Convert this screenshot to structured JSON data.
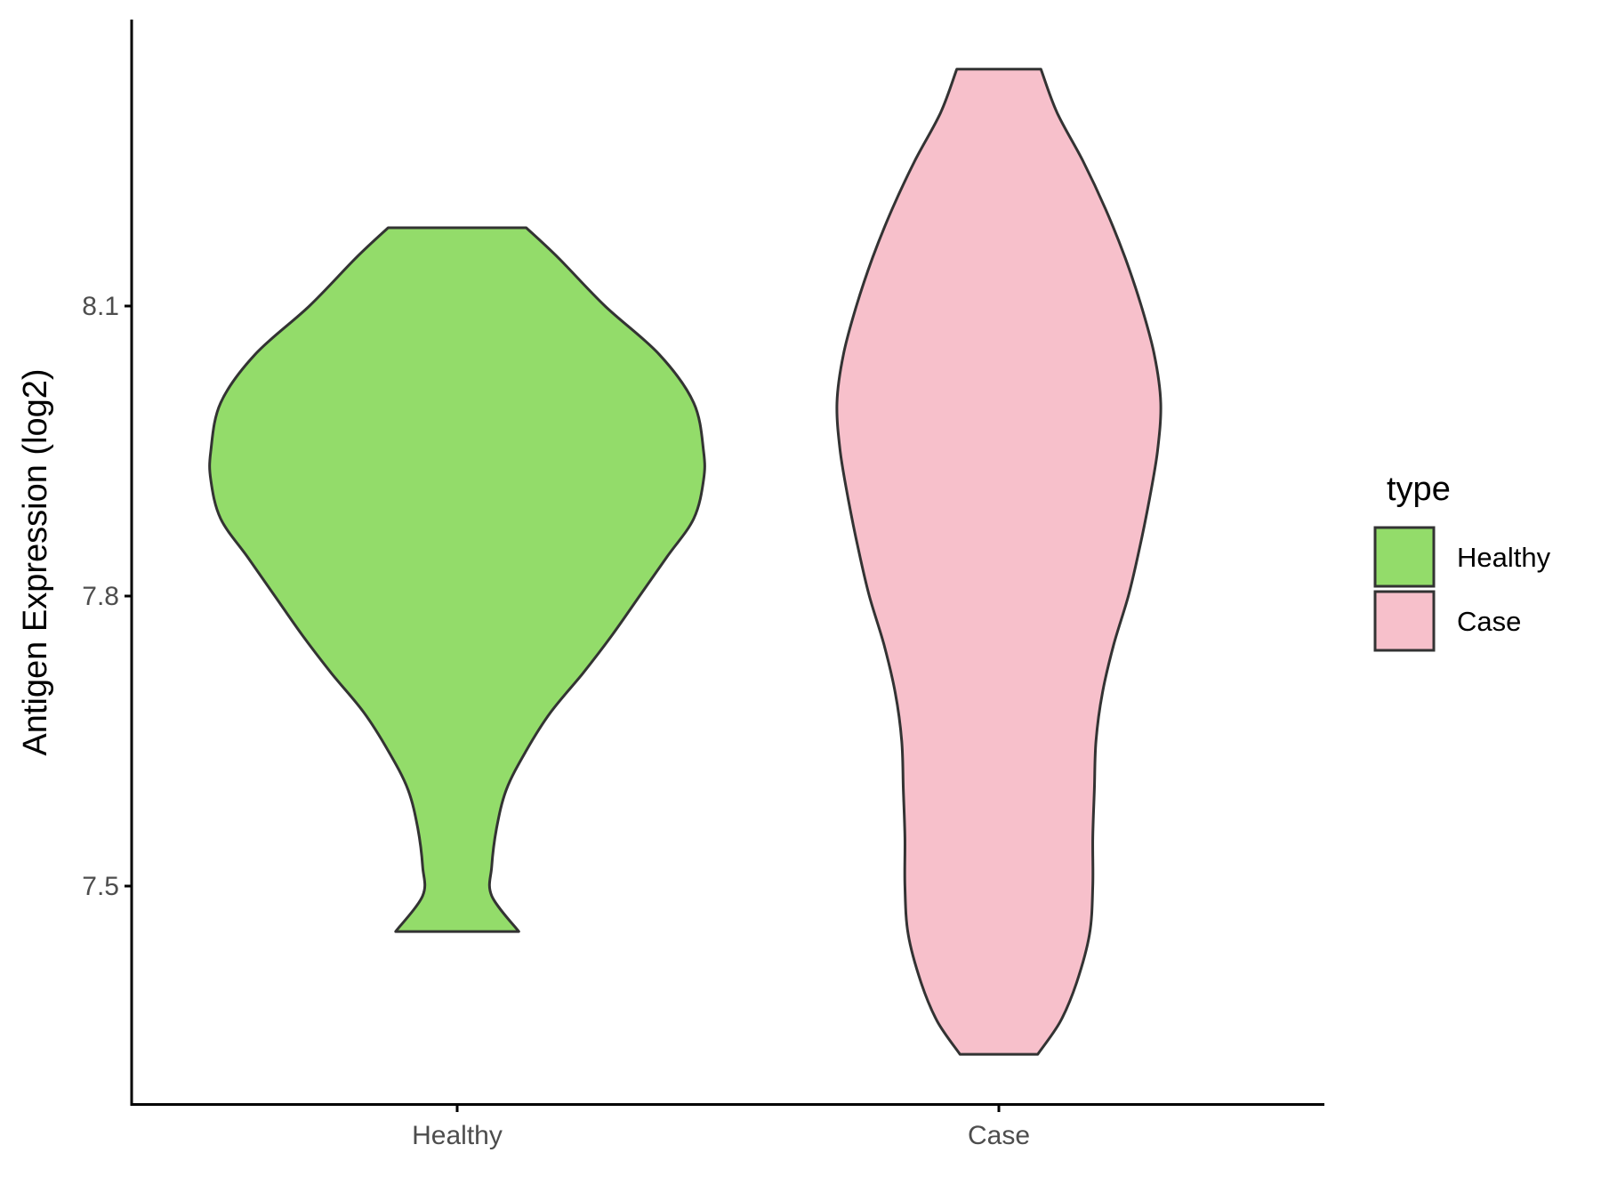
{
  "chart_data": {
    "type": "violin",
    "title": "",
    "xlabel": "",
    "ylabel": "Antigen Expression (log2)",
    "categories": [
      "Healthy",
      "Case"
    ],
    "yticks": [
      7.5,
      7.8,
      8.1
    ],
    "ylim": [
      7.28,
      8.39
    ],
    "grid": false,
    "legend": {
      "title": "type",
      "position": "right",
      "entries": [
        {
          "label": "Healthy",
          "color": "#93DC6A"
        },
        {
          "label": "Case",
          "color": "#F7C0CB"
        }
      ]
    },
    "series": [
      {
        "name": "Healthy",
        "color": "#93DC6A",
        "min": 7.453,
        "max": 8.181,
        "profile": [
          [
            8.181,
            0.28
          ],
          [
            8.15,
            0.41
          ],
          [
            8.1,
            0.6
          ],
          [
            8.05,
            0.82
          ],
          [
            8.0,
            0.96
          ],
          [
            7.95,
            1.0
          ],
          [
            7.92,
            1.0
          ],
          [
            7.88,
            0.96
          ],
          [
            7.84,
            0.85
          ],
          [
            7.8,
            0.74
          ],
          [
            7.76,
            0.63
          ],
          [
            7.72,
            0.51
          ],
          [
            7.68,
            0.38
          ],
          [
            7.64,
            0.28
          ],
          [
            7.6,
            0.2
          ],
          [
            7.56,
            0.16
          ],
          [
            7.52,
            0.14
          ],
          [
            7.49,
            0.14
          ],
          [
            7.453,
            0.25
          ]
        ]
      },
      {
        "name": "Case",
        "color": "#F7C0CB",
        "min": 7.326,
        "max": 8.345,
        "profile": [
          [
            8.345,
            0.26
          ],
          [
            8.3,
            0.36
          ],
          [
            8.25,
            0.52
          ],
          [
            8.2,
            0.66
          ],
          [
            8.15,
            0.78
          ],
          [
            8.1,
            0.88
          ],
          [
            8.05,
            0.96
          ],
          [
            8.0,
            1.0
          ],
          [
            7.95,
            0.98
          ],
          [
            7.9,
            0.93
          ],
          [
            7.85,
            0.87
          ],
          [
            7.8,
            0.8
          ],
          [
            7.75,
            0.71
          ],
          [
            7.7,
            0.64
          ],
          [
            7.65,
            0.6
          ],
          [
            7.6,
            0.59
          ],
          [
            7.55,
            0.58
          ],
          [
            7.5,
            0.58
          ],
          [
            7.45,
            0.56
          ],
          [
            7.4,
            0.48
          ],
          [
            7.36,
            0.38
          ],
          [
            7.326,
            0.24
          ]
        ]
      }
    ]
  }
}
